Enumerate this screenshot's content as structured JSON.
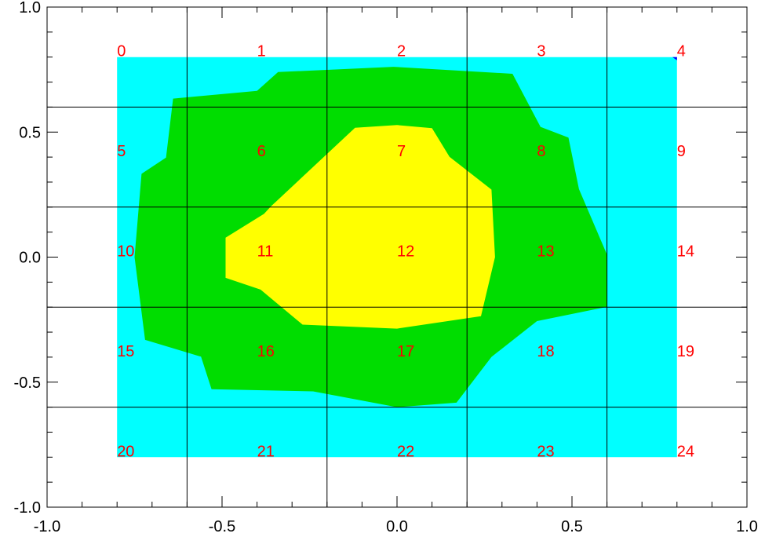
{
  "chart_data": {
    "type": "contour",
    "xlim": [
      -1.0,
      1.0
    ],
    "ylim": [
      -1.0,
      1.0
    ],
    "xticks": [
      -1.0,
      -0.5,
      0.0,
      0.5,
      1.0
    ],
    "yticks": [
      -1.0,
      -0.5,
      0.0,
      0.5,
      1.0
    ],
    "xtick_labels": [
      "-1.0",
      "-0.5",
      "0.0",
      "0.5",
      "1.0"
    ],
    "ytick_labels": [
      "-1.0",
      "-0.5",
      "0.0",
      "0.5",
      "1.0"
    ],
    "grid_lines": {
      "x": [
        -0.6,
        -0.2,
        0.2,
        0.6
      ],
      "y": [
        -0.6,
        -0.2,
        0.2,
        0.6
      ]
    },
    "node_label_color": "#ff0000",
    "nodes": [
      {
        "label": "0",
        "x": -0.8,
        "y": 0.8
      },
      {
        "label": "1",
        "x": -0.4,
        "y": 0.8
      },
      {
        "label": "2",
        "x": 0.0,
        "y": 0.8
      },
      {
        "label": "3",
        "x": 0.4,
        "y": 0.8
      },
      {
        "label": "4",
        "x": 0.8,
        "y": 0.8
      },
      {
        "label": "5",
        "x": -0.8,
        "y": 0.4
      },
      {
        "label": "6",
        "x": -0.4,
        "y": 0.4
      },
      {
        "label": "7",
        "x": 0.0,
        "y": 0.4
      },
      {
        "label": "8",
        "x": 0.4,
        "y": 0.4
      },
      {
        "label": "9",
        "x": 0.8,
        "y": 0.4
      },
      {
        "label": "10",
        "x": -0.8,
        "y": 0.0
      },
      {
        "label": "11",
        "x": -0.4,
        "y": 0.0
      },
      {
        "label": "12",
        "x": 0.0,
        "y": 0.0
      },
      {
        "label": "13",
        "x": 0.4,
        "y": 0.0
      },
      {
        "label": "14",
        "x": 0.8,
        "y": 0.0
      },
      {
        "label": "15",
        "x": -0.8,
        "y": -0.4
      },
      {
        "label": "16",
        "x": -0.4,
        "y": -0.4
      },
      {
        "label": "17",
        "x": 0.0,
        "y": -0.4
      },
      {
        "label": "18",
        "x": 0.4,
        "y": -0.4
      },
      {
        "label": "19",
        "x": 0.8,
        "y": -0.4
      },
      {
        "label": "20",
        "x": -0.8,
        "y": -0.8
      },
      {
        "label": "21",
        "x": -0.4,
        "y": -0.8
      },
      {
        "label": "22",
        "x": 0.0,
        "y": -0.8
      },
      {
        "label": "23",
        "x": 0.4,
        "y": -0.8
      },
      {
        "label": "24",
        "x": 0.8,
        "y": -0.8
      }
    ],
    "regions": [
      {
        "level": "low",
        "color": "#00ffff",
        "points": [
          [
            -0.8,
            -0.8
          ],
          [
            -0.8,
            0.8
          ],
          [
            0.8,
            0.8
          ],
          [
            0.8,
            -0.8
          ]
        ]
      },
      {
        "level": "mid",
        "color": "#00dd00",
        "points": [
          [
            -0.64,
            0.634
          ],
          [
            -0.4,
            0.665
          ],
          [
            -0.34,
            0.74
          ],
          [
            -0.01,
            0.761
          ],
          [
            0.33,
            0.733
          ],
          [
            0.41,
            0.521
          ],
          [
            0.49,
            0.478
          ],
          [
            0.52,
            0.272
          ],
          [
            0.6,
            0.01
          ],
          [
            0.6,
            -0.199
          ],
          [
            0.4,
            -0.256
          ],
          [
            0.27,
            -0.399
          ],
          [
            0.17,
            -0.582
          ],
          [
            0.0,
            -0.6
          ],
          [
            -0.24,
            -0.537
          ],
          [
            -0.53,
            -0.528
          ],
          [
            -0.56,
            -0.398
          ],
          [
            -0.72,
            -0.331
          ],
          [
            -0.75,
            0.0
          ],
          [
            -0.73,
            0.333
          ],
          [
            -0.66,
            0.398
          ]
        ]
      },
      {
        "level": "high",
        "color": "#ffff00",
        "points": [
          [
            -0.12,
            0.517
          ],
          [
            0.0,
            0.528
          ],
          [
            0.1,
            0.516
          ],
          [
            0.15,
            0.401
          ],
          [
            0.27,
            0.27
          ],
          [
            0.28,
            0.0
          ],
          [
            0.24,
            -0.236
          ],
          [
            0.0,
            -0.286
          ],
          [
            -0.27,
            -0.27
          ],
          [
            -0.39,
            -0.13
          ],
          [
            -0.49,
            -0.083
          ],
          [
            -0.49,
            0.078
          ],
          [
            -0.38,
            0.173
          ],
          [
            -0.36,
            0.203
          ]
        ]
      },
      {
        "level": "top",
        "color": "#0000ff",
        "points": [
          [
            0.787,
            0.8
          ],
          [
            0.8,
            0.8
          ],
          [
            0.8,
            0.787
          ]
        ]
      }
    ]
  }
}
